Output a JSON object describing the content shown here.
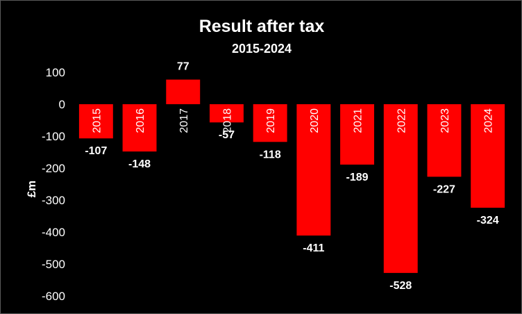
{
  "chart_data": {
    "type": "bar",
    "title": "Result after tax",
    "subtitle": "2015-2024",
    "xlabel": "",
    "ylabel": "£m",
    "categories": [
      "2015",
      "2016",
      "2017",
      "2018",
      "2019",
      "2020",
      "2021",
      "2022",
      "2023",
      "2024"
    ],
    "values": [
      -107,
      -148,
      77,
      -57,
      -118,
      -411,
      -189,
      -528,
      -227,
      -324
    ],
    "ylim": [
      -600,
      100
    ],
    "yticks": [
      100,
      0,
      -100,
      -200,
      -300,
      -400,
      -500,
      -600
    ],
    "bar_color": "#ff0000",
    "background": "#000000",
    "text_color": "#ffffff",
    "grid": false,
    "legend": "none",
    "data_labels": true
  }
}
